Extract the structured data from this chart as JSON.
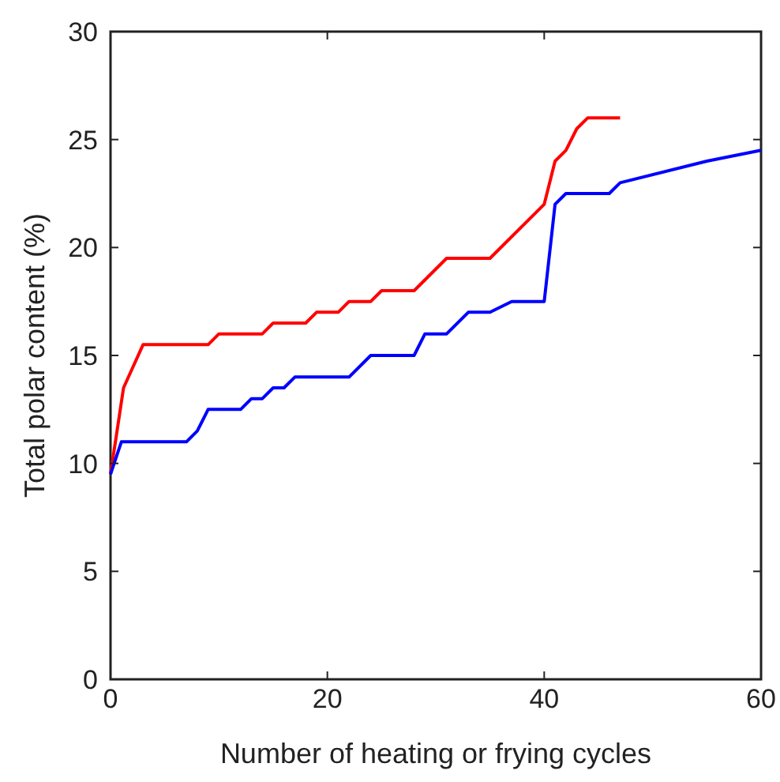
{
  "chart_data": {
    "type": "line",
    "xlabel": "Number of heating or frying cycles",
    "ylabel": "Total polar content (%)",
    "xlim": [
      0,
      60
    ],
    "xticks": [
      0,
      20,
      40,
      60
    ],
    "ylim": [
      0,
      30
    ],
    "yticks": [
      0,
      5,
      10,
      15,
      20,
      25,
      30
    ],
    "grid": false,
    "series": [
      {
        "color": "#ff0000",
        "x": [
          0,
          1.2,
          3,
          9,
          10,
          14,
          15,
          18,
          19,
          21,
          22,
          24,
          25,
          28,
          31,
          35,
          40,
          41,
          42,
          43,
          44,
          47
        ],
        "values": [
          9.5,
          13.5,
          15.5,
          15.5,
          16,
          16,
          16.5,
          16.5,
          17,
          17,
          17.5,
          17.5,
          18,
          18,
          19.5,
          19.5,
          22,
          24,
          24.5,
          25.5,
          26,
          26
        ]
      },
      {
        "color": "#0000ff",
        "x": [
          0,
          1,
          7,
          8,
          9,
          12,
          13,
          14,
          15,
          16,
          17,
          22,
          24,
          28,
          29,
          31,
          33,
          35,
          37,
          40,
          41,
          42,
          46,
          47,
          55,
          60
        ],
        "values": [
          9.5,
          11,
          11,
          11.5,
          12.5,
          12.5,
          13,
          13,
          13.5,
          13.5,
          14,
          14,
          15,
          15,
          16,
          16,
          17,
          17,
          17.5,
          17.5,
          22,
          22.5,
          22.5,
          23,
          24,
          24.5
        ]
      }
    ]
  }
}
